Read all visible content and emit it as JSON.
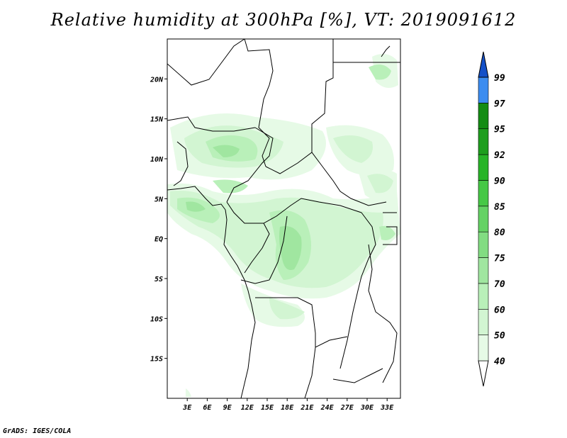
{
  "title": "Relative humidity at 300hPa [%], VT: 2019091612",
  "credit": "GrADS: IGES/COLA",
  "map": {
    "variable": "Relative humidity",
    "level": "300hPa",
    "units": "%",
    "valid_time": "2019091612",
    "lon_range": [
      0,
      35
    ],
    "lat_range": [
      -20,
      25
    ],
    "lat_ticks": [
      {
        "value": 20,
        "label": "20N"
      },
      {
        "value": 15,
        "label": "15N"
      },
      {
        "value": 10,
        "label": "10N"
      },
      {
        "value": 5,
        "label": "5N"
      },
      {
        "value": 0,
        "label": "EQ"
      },
      {
        "value": -5,
        "label": "5S"
      },
      {
        "value": -10,
        "label": "10S"
      },
      {
        "value": -15,
        "label": "15S"
      }
    ],
    "lon_ticks": [
      {
        "value": 3,
        "label": "3E"
      },
      {
        "value": 6,
        "label": "6E"
      },
      {
        "value": 9,
        "label": "9E"
      },
      {
        "value": 12,
        "label": "12E"
      },
      {
        "value": 15,
        "label": "15E"
      },
      {
        "value": 18,
        "label": "18E"
      },
      {
        "value": 21,
        "label": "21E"
      },
      {
        "value": 24,
        "label": "24E"
      },
      {
        "value": 27,
        "label": "27E"
      },
      {
        "value": 30,
        "label": "30E"
      },
      {
        "value": 33,
        "label": "33E"
      }
    ]
  },
  "colorbar": {
    "levels": [
      {
        "label": "40",
        "color": "#e6fae6"
      },
      {
        "label": "50",
        "color": "#d2f5d2"
      },
      {
        "label": "60",
        "color": "#b9f0b9"
      },
      {
        "label": "70",
        "color": "#a0e6a0"
      },
      {
        "label": "75",
        "color": "#82dc82"
      },
      {
        "label": "80",
        "color": "#64d264"
      },
      {
        "label": "85",
        "color": "#46c846"
      },
      {
        "label": "90",
        "color": "#28b428"
      },
      {
        "label": "92",
        "color": "#1e9e1e"
      },
      {
        "label": "95",
        "color": "#148c14"
      },
      {
        "label": "97",
        "color": "#3c8cf0"
      },
      {
        "label": "99",
        "color": "#1e64dc"
      }
    ],
    "below_color": "#ffffff",
    "above_color": "#1450c8"
  }
}
